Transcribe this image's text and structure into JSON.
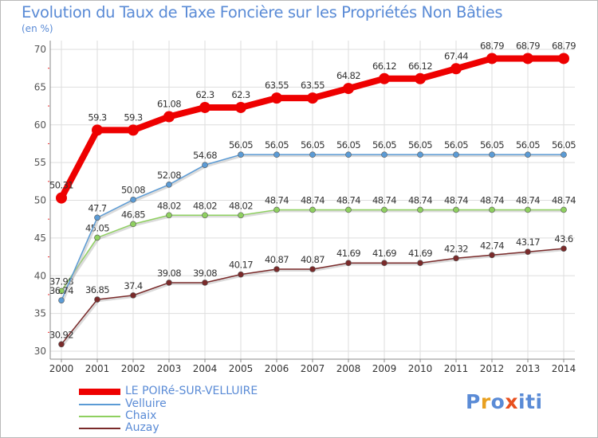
{
  "title": "Evolution du Taux de Taxe Foncière sur les Propriétés Non Bâties",
  "unit_label": "(en %)",
  "logo": {
    "text": "Proxiti",
    "colors": [
      "#5a8bd6",
      "#e8a020",
      "#5a8bd6",
      "#e8501e",
      "#5a8bd6",
      "#5a8bd6",
      "#5a8bd6"
    ]
  },
  "chart_data": {
    "type": "line",
    "x": [
      "2000",
      "2001",
      "2002",
      "2003",
      "2004",
      "2005",
      "2006",
      "2007",
      "2008",
      "2009",
      "2010",
      "2011",
      "2012",
      "2013",
      "2014"
    ],
    "ylim": [
      30,
      70
    ],
    "yticks": [
      "30",
      "35",
      "40",
      "45",
      "50",
      "55",
      "60",
      "65",
      "70"
    ],
    "grid": true,
    "legend_position": "bottom-left",
    "series": [
      {
        "name": "LE POIRé-SUR-VELLUIRE",
        "color": "#ee0000",
        "values": [
          50.31,
          59.3,
          59.3,
          61.08,
          62.3,
          62.3,
          63.55,
          63.55,
          64.82,
          66.12,
          66.12,
          67.44,
          68.79,
          68.79,
          68.79
        ],
        "labels": [
          "50.31",
          "59.3",
          "59.3",
          "61.08",
          "62.3",
          "62.3",
          "63.55",
          "63.55",
          "64.82",
          "66.12",
          "66.12",
          "67.44",
          "68.79",
          "68.79",
          "68.79"
        ]
      },
      {
        "name": "Velluire",
        "color": "#5b9bd5",
        "values": [
          36.74,
          47.7,
          50.08,
          52.08,
          54.68,
          56.05,
          56.05,
          56.05,
          56.05,
          56.05,
          56.05,
          56.05,
          56.05,
          56.05,
          56.05
        ],
        "labels": [
          "36.74",
          "47.7",
          "50.08",
          "52.08",
          "54.68",
          "56.05",
          "56.05",
          "56.05",
          "56.05",
          "56.05",
          "56.05",
          "56.05",
          "56.05",
          "56.05",
          "56.05"
        ]
      },
      {
        "name": "Chaix",
        "color": "#8fd060",
        "values": [
          37.98,
          45.05,
          46.85,
          48.02,
          48.02,
          48.02,
          48.74,
          48.74,
          48.74,
          48.74,
          48.74,
          48.74,
          48.74,
          48.74,
          48.74
        ],
        "labels": [
          "37.98",
          "45.05",
          "46.85",
          "48.02",
          "48.02",
          "48.02",
          "48.74",
          "48.74",
          "48.74",
          "48.74",
          "48.74",
          "48.74",
          "48.74",
          "48.74",
          "48.74"
        ]
      },
      {
        "name": "Auzay",
        "color": "#7a2a2a",
        "values": [
          30.92,
          36.85,
          37.4,
          39.08,
          39.08,
          40.17,
          40.87,
          40.87,
          41.69,
          41.69,
          41.69,
          42.32,
          42.74,
          43.17,
          43.6
        ],
        "labels": [
          "30.92",
          "36.85",
          "37.4",
          "39.08",
          "39.08",
          "40.17",
          "40.87",
          "40.87",
          "41.69",
          "41.69",
          "41.69",
          "42.32",
          "42.74",
          "43.17",
          "43.6"
        ]
      }
    ]
  }
}
